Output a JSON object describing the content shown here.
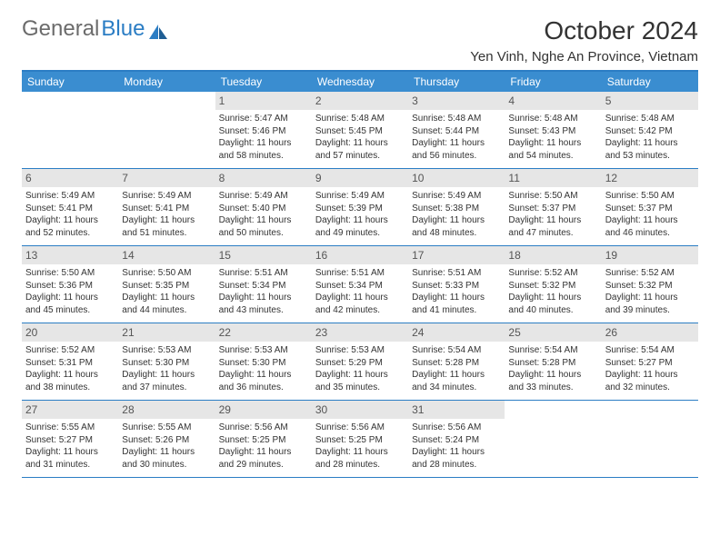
{
  "logo": {
    "text_gray": "General",
    "text_blue": "Blue"
  },
  "title": "October 2024",
  "location": "Yen Vinh, Nghe An Province, Vietnam",
  "colors": {
    "header_bg": "#3a8dd0",
    "border": "#2b7dc4",
    "daynum_bg": "#e6e6e6"
  },
  "day_headers": [
    "Sunday",
    "Monday",
    "Tuesday",
    "Wednesday",
    "Thursday",
    "Friday",
    "Saturday"
  ],
  "weeks": [
    [
      {
        "n": "",
        "empty": true
      },
      {
        "n": "",
        "empty": true
      },
      {
        "n": "1",
        "sr": "Sunrise: 5:47 AM",
        "ss": "Sunset: 5:46 PM",
        "dl": "Daylight: 11 hours and 58 minutes."
      },
      {
        "n": "2",
        "sr": "Sunrise: 5:48 AM",
        "ss": "Sunset: 5:45 PM",
        "dl": "Daylight: 11 hours and 57 minutes."
      },
      {
        "n": "3",
        "sr": "Sunrise: 5:48 AM",
        "ss": "Sunset: 5:44 PM",
        "dl": "Daylight: 11 hours and 56 minutes."
      },
      {
        "n": "4",
        "sr": "Sunrise: 5:48 AM",
        "ss": "Sunset: 5:43 PM",
        "dl": "Daylight: 11 hours and 54 minutes."
      },
      {
        "n": "5",
        "sr": "Sunrise: 5:48 AM",
        "ss": "Sunset: 5:42 PM",
        "dl": "Daylight: 11 hours and 53 minutes."
      }
    ],
    [
      {
        "n": "6",
        "sr": "Sunrise: 5:49 AM",
        "ss": "Sunset: 5:41 PM",
        "dl": "Daylight: 11 hours and 52 minutes."
      },
      {
        "n": "7",
        "sr": "Sunrise: 5:49 AM",
        "ss": "Sunset: 5:41 PM",
        "dl": "Daylight: 11 hours and 51 minutes."
      },
      {
        "n": "8",
        "sr": "Sunrise: 5:49 AM",
        "ss": "Sunset: 5:40 PM",
        "dl": "Daylight: 11 hours and 50 minutes."
      },
      {
        "n": "9",
        "sr": "Sunrise: 5:49 AM",
        "ss": "Sunset: 5:39 PM",
        "dl": "Daylight: 11 hours and 49 minutes."
      },
      {
        "n": "10",
        "sr": "Sunrise: 5:49 AM",
        "ss": "Sunset: 5:38 PM",
        "dl": "Daylight: 11 hours and 48 minutes."
      },
      {
        "n": "11",
        "sr": "Sunrise: 5:50 AM",
        "ss": "Sunset: 5:37 PM",
        "dl": "Daylight: 11 hours and 47 minutes."
      },
      {
        "n": "12",
        "sr": "Sunrise: 5:50 AM",
        "ss": "Sunset: 5:37 PM",
        "dl": "Daylight: 11 hours and 46 minutes."
      }
    ],
    [
      {
        "n": "13",
        "sr": "Sunrise: 5:50 AM",
        "ss": "Sunset: 5:36 PM",
        "dl": "Daylight: 11 hours and 45 minutes."
      },
      {
        "n": "14",
        "sr": "Sunrise: 5:50 AM",
        "ss": "Sunset: 5:35 PM",
        "dl": "Daylight: 11 hours and 44 minutes."
      },
      {
        "n": "15",
        "sr": "Sunrise: 5:51 AM",
        "ss": "Sunset: 5:34 PM",
        "dl": "Daylight: 11 hours and 43 minutes."
      },
      {
        "n": "16",
        "sr": "Sunrise: 5:51 AM",
        "ss": "Sunset: 5:34 PM",
        "dl": "Daylight: 11 hours and 42 minutes."
      },
      {
        "n": "17",
        "sr": "Sunrise: 5:51 AM",
        "ss": "Sunset: 5:33 PM",
        "dl": "Daylight: 11 hours and 41 minutes."
      },
      {
        "n": "18",
        "sr": "Sunrise: 5:52 AM",
        "ss": "Sunset: 5:32 PM",
        "dl": "Daylight: 11 hours and 40 minutes."
      },
      {
        "n": "19",
        "sr": "Sunrise: 5:52 AM",
        "ss": "Sunset: 5:32 PM",
        "dl": "Daylight: 11 hours and 39 minutes."
      }
    ],
    [
      {
        "n": "20",
        "sr": "Sunrise: 5:52 AM",
        "ss": "Sunset: 5:31 PM",
        "dl": "Daylight: 11 hours and 38 minutes."
      },
      {
        "n": "21",
        "sr": "Sunrise: 5:53 AM",
        "ss": "Sunset: 5:30 PM",
        "dl": "Daylight: 11 hours and 37 minutes."
      },
      {
        "n": "22",
        "sr": "Sunrise: 5:53 AM",
        "ss": "Sunset: 5:30 PM",
        "dl": "Daylight: 11 hours and 36 minutes."
      },
      {
        "n": "23",
        "sr": "Sunrise: 5:53 AM",
        "ss": "Sunset: 5:29 PM",
        "dl": "Daylight: 11 hours and 35 minutes."
      },
      {
        "n": "24",
        "sr": "Sunrise: 5:54 AM",
        "ss": "Sunset: 5:28 PM",
        "dl": "Daylight: 11 hours and 34 minutes."
      },
      {
        "n": "25",
        "sr": "Sunrise: 5:54 AM",
        "ss": "Sunset: 5:28 PM",
        "dl": "Daylight: 11 hours and 33 minutes."
      },
      {
        "n": "26",
        "sr": "Sunrise: 5:54 AM",
        "ss": "Sunset: 5:27 PM",
        "dl": "Daylight: 11 hours and 32 minutes."
      }
    ],
    [
      {
        "n": "27",
        "sr": "Sunrise: 5:55 AM",
        "ss": "Sunset: 5:27 PM",
        "dl": "Daylight: 11 hours and 31 minutes."
      },
      {
        "n": "28",
        "sr": "Sunrise: 5:55 AM",
        "ss": "Sunset: 5:26 PM",
        "dl": "Daylight: 11 hours and 30 minutes."
      },
      {
        "n": "29",
        "sr": "Sunrise: 5:56 AM",
        "ss": "Sunset: 5:25 PM",
        "dl": "Daylight: 11 hours and 29 minutes."
      },
      {
        "n": "30",
        "sr": "Sunrise: 5:56 AM",
        "ss": "Sunset: 5:25 PM",
        "dl": "Daylight: 11 hours and 28 minutes."
      },
      {
        "n": "31",
        "sr": "Sunrise: 5:56 AM",
        "ss": "Sunset: 5:24 PM",
        "dl": "Daylight: 11 hours and 28 minutes."
      },
      {
        "n": "",
        "empty": true
      },
      {
        "n": "",
        "empty": true
      }
    ]
  ]
}
